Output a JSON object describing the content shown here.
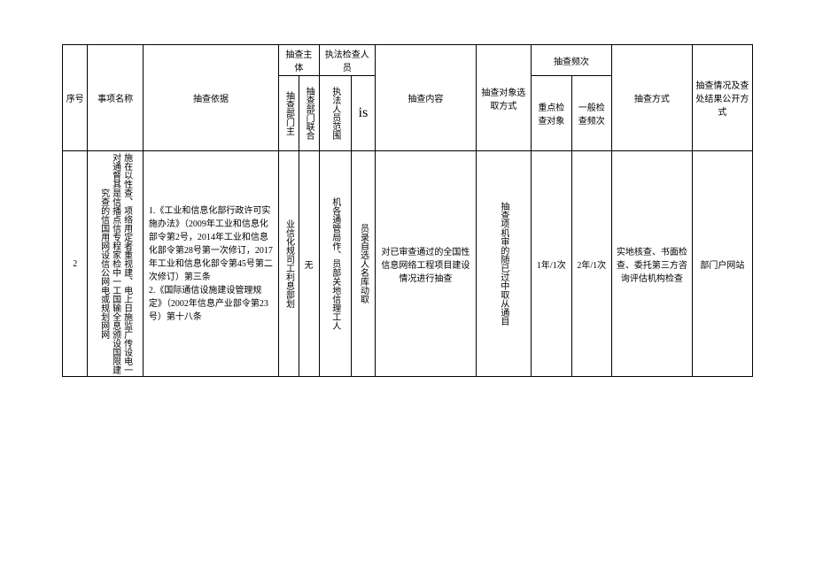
{
  "header": {
    "seq": "序号",
    "item_name": "事项名称",
    "basis": "抽查依据",
    "subject_group": "抽查主体",
    "subject_main": "抽查部门主",
    "subject_joint": "抽查部门联合",
    "enforce_group": "执法检查人员",
    "enforce_scope": "执法人员范围",
    "enforce_select": "is",
    "content": "抽查内容",
    "select_method": "抽查对象选取方式",
    "freq_group": "抽查频次",
    "freq_key": "重点检查对象",
    "freq_gen": "一般检查频次",
    "method": "抽查方式",
    "public": "抽查情况及查处结果公开方式"
  },
  "row": {
    "seq": "2",
    "item_name": "施在以性查、项络用定者重视建、电上日施监广传设电一对通督其是信播点信专程家检中一工国输全息颁设国限建究查的信国用网设信公网电或规划网网",
    "basis": "1.《工业和信息化部行政许可实施办法》（2009年工业和信息化部令第2号，2014年工业和信息化部令第28号第一次修订，2017年工业和信息化部令第45号第二次修订）第三条\n2.《国际通信设施建设管理规定》（2002年信息产业部令第23号）第十八条",
    "subject_main": "业信化规司工利息部划",
    "subject_joint": "无",
    "enforce_scope": "机各通管局作、员部关地信理工人",
    "enforce_select": "员录自选人名库动取",
    "content": "对已审查通过的全国性信息网络工程项目建设情况进行抽查",
    "select_method": "抽查项机审的随已过中取从通目",
    "freq_key": "1年/1次",
    "freq_gen": "2年/1次",
    "method": "实地核查、书面检查、委托第三方咨询评估机构检查",
    "public": "部门户网站"
  }
}
